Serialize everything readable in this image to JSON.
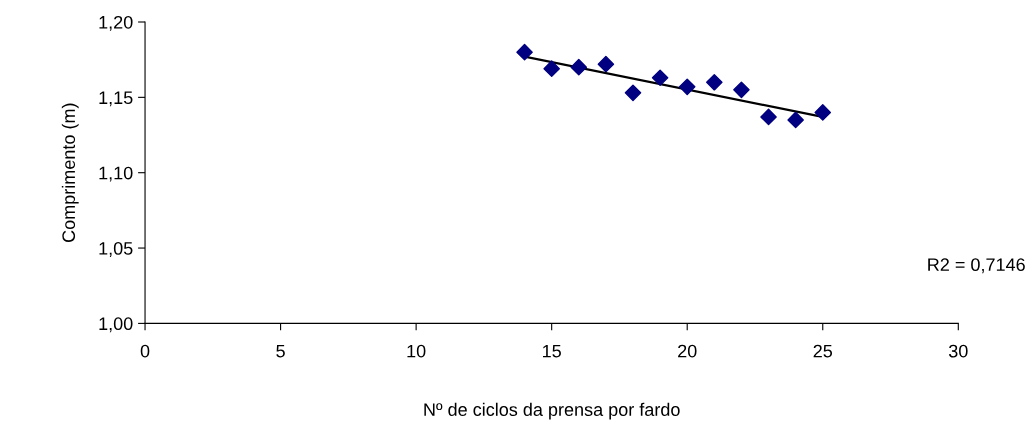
{
  "chart_data": {
    "type": "scatter",
    "xlabel": "Nº de ciclos da prensa por fardo",
    "ylabel": "Comprimento (m)",
    "xlim": [
      0,
      30
    ],
    "xticks": [
      0,
      5,
      10,
      15,
      20,
      25,
      30
    ],
    "ylim": [
      1.0,
      1.2
    ],
    "yticks": [
      {
        "value": 1.0,
        "label": "1,00"
      },
      {
        "value": 1.05,
        "label": "1,05"
      },
      {
        "value": 1.1,
        "label": "1,10"
      },
      {
        "value": 1.15,
        "label": "1,15"
      },
      {
        "value": 1.2,
        "label": "1,20"
      }
    ],
    "grid": false,
    "series": [
      {
        "marker": "diamond",
        "color": "#000080",
        "x": [
          14,
          15,
          16,
          17,
          18,
          19,
          20,
          21,
          22,
          23,
          24,
          25
        ],
        "values": [
          1.18,
          1.169,
          1.17,
          1.172,
          1.153,
          1.163,
          1.157,
          1.16,
          1.155,
          1.137,
          1.135,
          1.14
        ]
      },
      {
        "type": "line",
        "color": "#000000",
        "x": [
          14,
          25
        ],
        "values": [
          1.177,
          1.137
        ]
      }
    ],
    "annotations": [
      "R2 = 0,7146"
    ]
  }
}
